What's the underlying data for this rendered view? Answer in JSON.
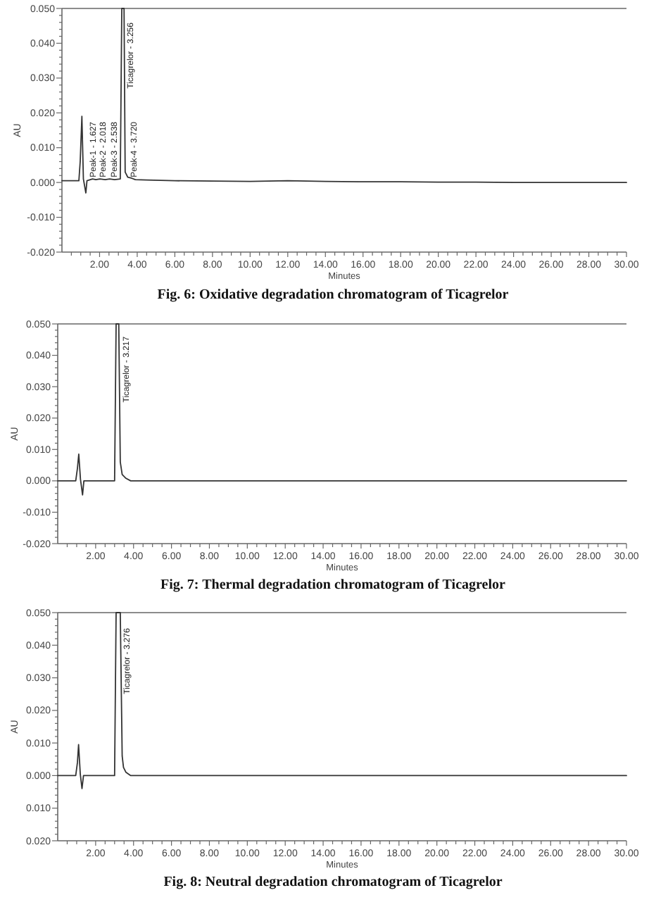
{
  "chart_data": [
    {
      "type": "line",
      "title": "Fig. 6: Oxidative degradation chromatogram of Ticagrelor",
      "xlabel": "Minutes",
      "ylabel": "AU",
      "color": "#333333",
      "x": [
        0,
        0.9,
        0.97,
        1.06,
        1.14,
        1.27,
        1.33,
        1.627,
        1.8,
        2.018,
        2.3,
        2.538,
        2.8,
        3.1,
        3.18,
        3.3,
        3.36,
        3.5,
        3.72,
        3.9,
        4.5,
        6,
        8,
        10,
        12,
        14,
        16,
        18,
        20,
        22,
        24,
        26,
        28,
        30
      ],
      "values": [
        0.0005,
        0.0005,
        0.006,
        0.019,
        0.001,
        -0.003,
        0.0005,
        0.001,
        0.0008,
        0.001,
        0.0008,
        0.001,
        0.0008,
        0.001,
        0.05,
        0.05,
        0.003,
        0.0015,
        0.0012,
        0.0008,
        0.0007,
        0.0005,
        0.0004,
        0.0003,
        0.0005,
        0.0003,
        0.0002,
        0.0002,
        0.0001,
        0.0001,
        0,
        0,
        0,
        0
      ],
      "xlim": [
        0,
        30
      ],
      "ylim": [
        -0.02,
        0.05
      ],
      "xticks": [
        {
          "value": 0.5,
          "label": null
        },
        {
          "value": 1,
          "label": null
        },
        {
          "value": 1.5,
          "label": null
        },
        {
          "value": 2,
          "label": "2.00"
        },
        {
          "value": 2.5,
          "label": null
        },
        {
          "value": 3,
          "label": null
        },
        {
          "value": 3.5,
          "label": null
        },
        {
          "value": 4,
          "label": "4.00"
        },
        {
          "value": 4.5,
          "label": null
        },
        {
          "value": 5,
          "label": null
        },
        {
          "value": 5.5,
          "label": null
        },
        {
          "value": 6,
          "label": "6.00"
        },
        {
          "value": 6.5,
          "label": null
        },
        {
          "value": 7,
          "label": null
        },
        {
          "value": 7.5,
          "label": null
        },
        {
          "value": 8,
          "label": "8.00"
        },
        {
          "value": 8.5,
          "label": null
        },
        {
          "value": 9,
          "label": null
        },
        {
          "value": 9.5,
          "label": null
        },
        {
          "value": 10,
          "label": "10.00"
        },
        {
          "value": 10.5,
          "label": null
        },
        {
          "value": 11,
          "label": null
        },
        {
          "value": 11.5,
          "label": null
        },
        {
          "value": 12,
          "label": "12.00"
        },
        {
          "value": 12.5,
          "label": null
        },
        {
          "value": 13,
          "label": null
        },
        {
          "value": 13.5,
          "label": null
        },
        {
          "value": 14,
          "label": "14.00"
        },
        {
          "value": 14.5,
          "label": null
        },
        {
          "value": 15,
          "label": null
        },
        {
          "value": 15.5,
          "label": null
        },
        {
          "value": 16,
          "label": "16.00"
        },
        {
          "value": 16.5,
          "label": null
        },
        {
          "value": 17,
          "label": null
        },
        {
          "value": 17.5,
          "label": null
        },
        {
          "value": 18,
          "label": "18.00"
        },
        {
          "value": 18.5,
          "label": null
        },
        {
          "value": 19,
          "label": null
        },
        {
          "value": 19.5,
          "label": null
        },
        {
          "value": 20,
          "label": "20.00"
        },
        {
          "value": 20.5,
          "label": null
        },
        {
          "value": 21,
          "label": null
        },
        {
          "value": 21.5,
          "label": null
        },
        {
          "value": 22,
          "label": "22.00"
        },
        {
          "value": 22.5,
          "label": null
        },
        {
          "value": 23,
          "label": null
        },
        {
          "value": 23.5,
          "label": null
        },
        {
          "value": 24,
          "label": "24.00"
        },
        {
          "value": 24.5,
          "label": null
        },
        {
          "value": 25,
          "label": null
        },
        {
          "value": 25.5,
          "label": null
        },
        {
          "value": 26,
          "label": "26.00"
        },
        {
          "value": 26.5,
          "label": null
        },
        {
          "value": 27,
          "label": null
        },
        {
          "value": 27.5,
          "label": null
        },
        {
          "value": 28,
          "label": "28.00"
        },
        {
          "value": 28.5,
          "label": null
        },
        {
          "value": 29,
          "label": null
        },
        {
          "value": 29.5,
          "label": null
        },
        {
          "value": 30,
          "label": "30.00"
        }
      ],
      "yticks": [
        {
          "value": -0.02,
          "label": "-0.020"
        },
        {
          "value": -0.018,
          "label": null
        },
        {
          "value": -0.016,
          "label": null
        },
        {
          "value": -0.014,
          "label": null
        },
        {
          "value": -0.012,
          "label": null
        },
        {
          "value": -0.01,
          "label": "-0.010"
        },
        {
          "value": -0.008,
          "label": null
        },
        {
          "value": -0.006,
          "label": null
        },
        {
          "value": -0.004,
          "label": null
        },
        {
          "value": -0.002,
          "label": null
        },
        {
          "value": 0,
          "label": "0.000"
        },
        {
          "value": 0.002,
          "label": null
        },
        {
          "value": 0.004,
          "label": null
        },
        {
          "value": 0.006,
          "label": null
        },
        {
          "value": 0.008,
          "label": null
        },
        {
          "value": 0.01,
          "label": "0.010"
        },
        {
          "value": 0.012,
          "label": null
        },
        {
          "value": 0.014,
          "label": null
        },
        {
          "value": 0.016,
          "label": null
        },
        {
          "value": 0.018,
          "label": null
        },
        {
          "value": 0.02,
          "label": "0.020"
        },
        {
          "value": 0.022,
          "label": null
        },
        {
          "value": 0.024,
          "label": null
        },
        {
          "value": 0.026,
          "label": null
        },
        {
          "value": 0.028,
          "label": null
        },
        {
          "value": 0.03,
          "label": "0.030"
        },
        {
          "value": 0.032,
          "label": null
        },
        {
          "value": 0.034,
          "label": null
        },
        {
          "value": 0.036,
          "label": null
        },
        {
          "value": 0.038,
          "label": null
        },
        {
          "value": 0.04,
          "label": "0.040"
        },
        {
          "value": 0.042,
          "label": null
        },
        {
          "value": 0.044,
          "label": null
        },
        {
          "value": 0.046,
          "label": null
        },
        {
          "value": 0.048,
          "label": null
        },
        {
          "value": 0.05,
          "label": "0.050"
        }
      ],
      "annotations": [
        {
          "text": "Peak-1 - 1.627",
          "x": 1.627,
          "y": 0.0015
        },
        {
          "text": "Peak-2 - 2.018",
          "x": 2.018,
          "y": 0.0015
        },
        {
          "text": "Peak-3 - 2.538",
          "x": 2.538,
          "y": 0.0015
        },
        {
          "text": "Ticagrelor - 3.256",
          "x": 3.256,
          "y": 0.027
        },
        {
          "text": "Peak-4 - 3.720",
          "x": 3.72,
          "y": 0.0015
        }
      ]
    },
    {
      "type": "line",
      "title": "Fig. 7: Thermal degradation chromatogram of Ticagrelor",
      "xlabel": "Minutes",
      "ylabel": "AU",
      "color": "#333333",
      "x": [
        0,
        0.95,
        1.04,
        1.11,
        1.2,
        1.31,
        1.38,
        2,
        3.0,
        3.08,
        3.22,
        3.3,
        3.4,
        3.6,
        3.85,
        5,
        10,
        15,
        20,
        25,
        30
      ],
      "values": [
        0,
        0,
        0.004,
        0.0085,
        0.0005,
        -0.0045,
        0,
        0,
        0,
        0.05,
        0.05,
        0.006,
        0.002,
        0.0008,
        0,
        0,
        0,
        0,
        0,
        0,
        0
      ],
      "xlim": [
        0,
        30
      ],
      "ylim": [
        -0.02,
        0.05
      ],
      "xticks": [
        {
          "value": 0.5,
          "label": null
        },
        {
          "value": 1,
          "label": null
        },
        {
          "value": 1.5,
          "label": null
        },
        {
          "value": 2,
          "label": "2.00"
        },
        {
          "value": 2.5,
          "label": null
        },
        {
          "value": 3,
          "label": null
        },
        {
          "value": 3.5,
          "label": null
        },
        {
          "value": 4,
          "label": "4.00"
        },
        {
          "value": 4.5,
          "label": null
        },
        {
          "value": 5,
          "label": null
        },
        {
          "value": 5.5,
          "label": null
        },
        {
          "value": 6,
          "label": "6.00"
        },
        {
          "value": 6.5,
          "label": null
        },
        {
          "value": 7,
          "label": null
        },
        {
          "value": 7.5,
          "label": null
        },
        {
          "value": 8,
          "label": "8.00"
        },
        {
          "value": 8.5,
          "label": null
        },
        {
          "value": 9,
          "label": null
        },
        {
          "value": 9.5,
          "label": null
        },
        {
          "value": 10,
          "label": "10.00"
        },
        {
          "value": 10.5,
          "label": null
        },
        {
          "value": 11,
          "label": null
        },
        {
          "value": 11.5,
          "label": null
        },
        {
          "value": 12,
          "label": "12.00"
        },
        {
          "value": 12.5,
          "label": null
        },
        {
          "value": 13,
          "label": null
        },
        {
          "value": 13.5,
          "label": null
        },
        {
          "value": 14,
          "label": "14.00"
        },
        {
          "value": 14.5,
          "label": null
        },
        {
          "value": 15,
          "label": null
        },
        {
          "value": 15.5,
          "label": null
        },
        {
          "value": 16,
          "label": "16.00"
        },
        {
          "value": 16.5,
          "label": null
        },
        {
          "value": 17,
          "label": null
        },
        {
          "value": 17.5,
          "label": null
        },
        {
          "value": 18,
          "label": "18.00"
        },
        {
          "value": 18.5,
          "label": null
        },
        {
          "value": 19,
          "label": null
        },
        {
          "value": 19.5,
          "label": null
        },
        {
          "value": 20,
          "label": "20.00"
        },
        {
          "value": 20.5,
          "label": null
        },
        {
          "value": 21,
          "label": null
        },
        {
          "value": 21.5,
          "label": null
        },
        {
          "value": 22,
          "label": "22.00"
        },
        {
          "value": 22.5,
          "label": null
        },
        {
          "value": 23,
          "label": null
        },
        {
          "value": 23.5,
          "label": null
        },
        {
          "value": 24,
          "label": "24.00"
        },
        {
          "value": 24.5,
          "label": null
        },
        {
          "value": 25,
          "label": null
        },
        {
          "value": 25.5,
          "label": null
        },
        {
          "value": 26,
          "label": "26.00"
        },
        {
          "value": 26.5,
          "label": null
        },
        {
          "value": 27,
          "label": null
        },
        {
          "value": 27.5,
          "label": null
        },
        {
          "value": 28,
          "label": "28.00"
        },
        {
          "value": 28.5,
          "label": null
        },
        {
          "value": 29,
          "label": null
        },
        {
          "value": 29.5,
          "label": null
        },
        {
          "value": 30,
          "label": "30.00"
        }
      ],
      "yticks": [
        {
          "value": -0.02,
          "label": "-0.020"
        },
        {
          "value": -0.018,
          "label": null
        },
        {
          "value": -0.016,
          "label": null
        },
        {
          "value": -0.014,
          "label": null
        },
        {
          "value": -0.012,
          "label": null
        },
        {
          "value": -0.01,
          "label": "-0.010"
        },
        {
          "value": -0.008,
          "label": null
        },
        {
          "value": -0.006,
          "label": null
        },
        {
          "value": -0.004,
          "label": null
        },
        {
          "value": -0.002,
          "label": null
        },
        {
          "value": 0,
          "label": "0.000"
        },
        {
          "value": 0.002,
          "label": null
        },
        {
          "value": 0.004,
          "label": null
        },
        {
          "value": 0.006,
          "label": null
        },
        {
          "value": 0.008,
          "label": null
        },
        {
          "value": 0.01,
          "label": "0.010"
        },
        {
          "value": 0.012,
          "label": null
        },
        {
          "value": 0.014,
          "label": null
        },
        {
          "value": 0.016,
          "label": null
        },
        {
          "value": 0.018,
          "label": null
        },
        {
          "value": 0.02,
          "label": "0.020"
        },
        {
          "value": 0.022,
          "label": null
        },
        {
          "value": 0.024,
          "label": null
        },
        {
          "value": 0.026,
          "label": null
        },
        {
          "value": 0.028,
          "label": null
        },
        {
          "value": 0.03,
          "label": "0.030"
        },
        {
          "value": 0.032,
          "label": null
        },
        {
          "value": 0.034,
          "label": null
        },
        {
          "value": 0.036,
          "label": null
        },
        {
          "value": 0.038,
          "label": null
        },
        {
          "value": 0.04,
          "label": "0.040"
        },
        {
          "value": 0.042,
          "label": null
        },
        {
          "value": 0.044,
          "label": null
        },
        {
          "value": 0.046,
          "label": null
        },
        {
          "value": 0.048,
          "label": null
        },
        {
          "value": 0.05,
          "label": "0.050"
        }
      ],
      "annotations": [
        {
          "text": "Ticagrelor - 3.217",
          "x": 3.217,
          "y": 0.025
        }
      ]
    },
    {
      "type": "line",
      "title": "Fig. 8: Neutral degradation chromatogram of Ticagrelor",
      "xlabel": "Minutes",
      "ylabel": "AU",
      "color": "#333333",
      "x": [
        0,
        0.95,
        1.04,
        1.1,
        1.19,
        1.28,
        1.36,
        2,
        3.0,
        3.08,
        3.3,
        3.4,
        3.47,
        3.6,
        3.85,
        5,
        10,
        15,
        20,
        25,
        30
      ],
      "values": [
        0,
        0,
        0.004,
        0.0095,
        0.0005,
        -0.004,
        0,
        0,
        0,
        0.05,
        0.05,
        0.006,
        0.0025,
        0.001,
        0,
        0,
        0,
        0,
        0,
        0,
        0
      ],
      "xlim": [
        0,
        30
      ],
      "ylim": [
        -0.02,
        0.05
      ],
      "xticks": [
        {
          "value": 0.5,
          "label": null
        },
        {
          "value": 1,
          "label": null
        },
        {
          "value": 1.5,
          "label": null
        },
        {
          "value": 2,
          "label": "2.00"
        },
        {
          "value": 2.5,
          "label": null
        },
        {
          "value": 3,
          "label": null
        },
        {
          "value": 3.5,
          "label": null
        },
        {
          "value": 4,
          "label": "4.00"
        },
        {
          "value": 4.5,
          "label": null
        },
        {
          "value": 5,
          "label": null
        },
        {
          "value": 5.5,
          "label": null
        },
        {
          "value": 6,
          "label": "6.00"
        },
        {
          "value": 6.5,
          "label": null
        },
        {
          "value": 7,
          "label": null
        },
        {
          "value": 7.5,
          "label": null
        },
        {
          "value": 8,
          "label": "8.00"
        },
        {
          "value": 8.5,
          "label": null
        },
        {
          "value": 9,
          "label": null
        },
        {
          "value": 9.5,
          "label": null
        },
        {
          "value": 10,
          "label": "10.00"
        },
        {
          "value": 10.5,
          "label": null
        },
        {
          "value": 11,
          "label": null
        },
        {
          "value": 11.5,
          "label": null
        },
        {
          "value": 12,
          "label": "12.00"
        },
        {
          "value": 12.5,
          "label": null
        },
        {
          "value": 13,
          "label": null
        },
        {
          "value": 13.5,
          "label": null
        },
        {
          "value": 14,
          "label": "14.00"
        },
        {
          "value": 14.5,
          "label": null
        },
        {
          "value": 15,
          "label": null
        },
        {
          "value": 15.5,
          "label": null
        },
        {
          "value": 16,
          "label": "16.00"
        },
        {
          "value": 16.5,
          "label": null
        },
        {
          "value": 17,
          "label": null
        },
        {
          "value": 17.5,
          "label": null
        },
        {
          "value": 18,
          "label": "18.00"
        },
        {
          "value": 18.5,
          "label": null
        },
        {
          "value": 19,
          "label": null
        },
        {
          "value": 19.5,
          "label": null
        },
        {
          "value": 20,
          "label": "20.00"
        },
        {
          "value": 20.5,
          "label": null
        },
        {
          "value": 21,
          "label": null
        },
        {
          "value": 21.5,
          "label": null
        },
        {
          "value": 22,
          "label": "22.00"
        },
        {
          "value": 22.5,
          "label": null
        },
        {
          "value": 23,
          "label": null
        },
        {
          "value": 23.5,
          "label": null
        },
        {
          "value": 24,
          "label": "24.00"
        },
        {
          "value": 24.5,
          "label": null
        },
        {
          "value": 25,
          "label": null
        },
        {
          "value": 25.5,
          "label": null
        },
        {
          "value": 26,
          "label": "26.00"
        },
        {
          "value": 26.5,
          "label": null
        },
        {
          "value": 27,
          "label": null
        },
        {
          "value": 27.5,
          "label": null
        },
        {
          "value": 28,
          "label": "28.00"
        },
        {
          "value": 28.5,
          "label": null
        },
        {
          "value": 29,
          "label": null
        },
        {
          "value": 29.5,
          "label": null
        },
        {
          "value": 30,
          "label": "30.00"
        }
      ],
      "yticks": [
        {
          "value": -0.02,
          "label": "0.020"
        },
        {
          "value": -0.018,
          "label": null
        },
        {
          "value": -0.016,
          "label": null
        },
        {
          "value": -0.014,
          "label": null
        },
        {
          "value": -0.012,
          "label": null
        },
        {
          "value": -0.01,
          "label": "0.010"
        },
        {
          "value": -0.008,
          "label": null
        },
        {
          "value": -0.006,
          "label": null
        },
        {
          "value": -0.004,
          "label": null
        },
        {
          "value": -0.002,
          "label": null
        },
        {
          "value": 0,
          "label": "0.000"
        },
        {
          "value": 0.002,
          "label": null
        },
        {
          "value": 0.004,
          "label": null
        },
        {
          "value": 0.006,
          "label": null
        },
        {
          "value": 0.008,
          "label": null
        },
        {
          "value": 0.01,
          "label": "0.010"
        },
        {
          "value": 0.012,
          "label": null
        },
        {
          "value": 0.014,
          "label": null
        },
        {
          "value": 0.016,
          "label": null
        },
        {
          "value": 0.018,
          "label": null
        },
        {
          "value": 0.02,
          "label": "0.020"
        },
        {
          "value": 0.022,
          "label": null
        },
        {
          "value": 0.024,
          "label": null
        },
        {
          "value": 0.026,
          "label": null
        },
        {
          "value": 0.028,
          "label": null
        },
        {
          "value": 0.03,
          "label": "0.030"
        },
        {
          "value": 0.032,
          "label": null
        },
        {
          "value": 0.034,
          "label": null
        },
        {
          "value": 0.036,
          "label": null
        },
        {
          "value": 0.038,
          "label": null
        },
        {
          "value": 0.04,
          "label": "0.040"
        },
        {
          "value": 0.042,
          "label": null
        },
        {
          "value": 0.044,
          "label": null
        },
        {
          "value": 0.046,
          "label": null
        },
        {
          "value": 0.048,
          "label": null
        },
        {
          "value": 0.05,
          "label": "0.050"
        }
      ],
      "annotations": [
        {
          "text": "Ticagrelor - 3.276",
          "x": 3.276,
          "y": 0.025
        }
      ]
    }
  ]
}
